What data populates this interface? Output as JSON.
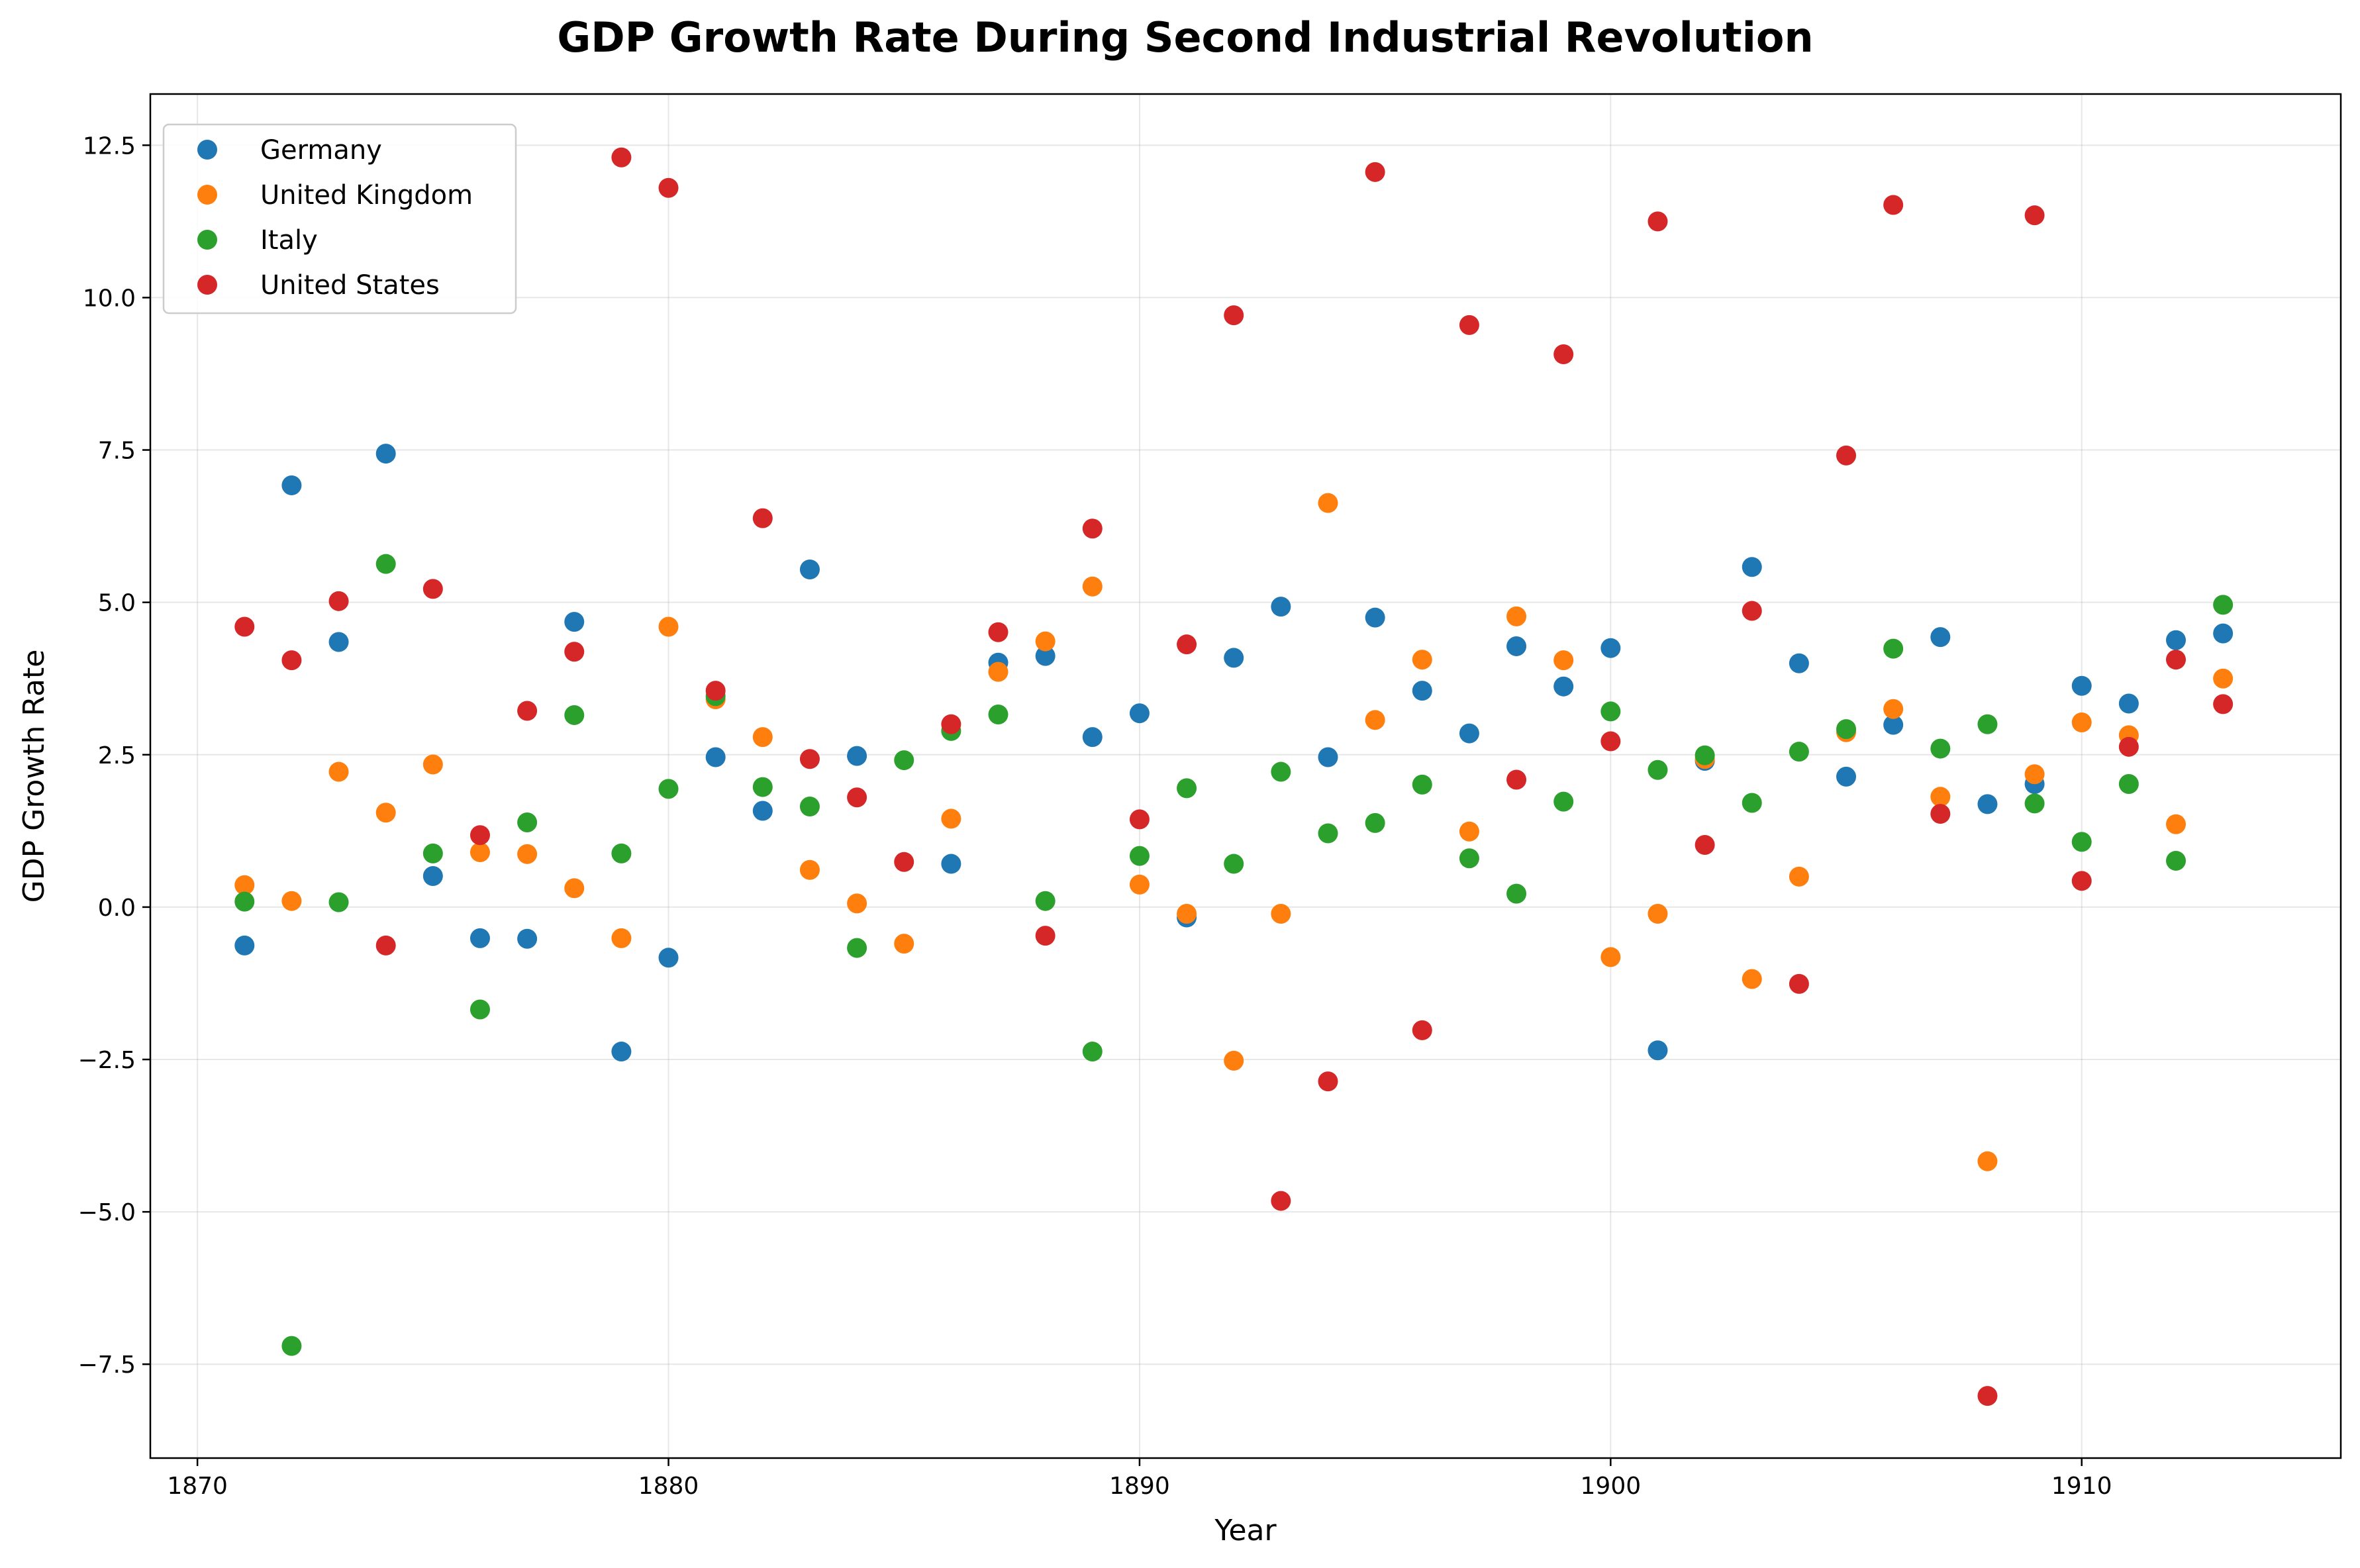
{
  "chart_data": {
    "type": "scatter",
    "title": "GDP Growth Rate During Second Industrial Revolution",
    "xlabel": "Year",
    "ylabel": "GDP Growth Rate",
    "xlim": [
      1869,
      1915.5
    ],
    "ylim": [
      -9.04,
      13.34
    ],
    "xticks": [
      1870,
      1880,
      1890,
      1900,
      1910
    ],
    "xtick_labels": [
      "1870",
      "1880",
      "1890",
      "1900",
      "1910"
    ],
    "yticks": [
      -7.5,
      -5.0,
      -2.5,
      0.0,
      2.5,
      5.0,
      7.5,
      10.0,
      12.5
    ],
    "ytick_labels": [
      "−7.5",
      "−5.0",
      "−2.5",
      "0.0",
      "2.5",
      "5.0",
      "7.5",
      "10.0",
      "12.5"
    ],
    "grid": true,
    "legend_position": "top-left",
    "x": [
      1871,
      1872,
      1873,
      1874,
      1875,
      1876,
      1877,
      1878,
      1879,
      1880,
      1881,
      1882,
      1883,
      1884,
      1885,
      1886,
      1887,
      1888,
      1889,
      1890,
      1891,
      1892,
      1893,
      1894,
      1895,
      1896,
      1897,
      1898,
      1899,
      1900,
      1901,
      1902,
      1903,
      1904,
      1905,
      1906,
      1907,
      1908,
      1909,
      1910,
      1911,
      1912,
      1913
    ],
    "series": [
      {
        "name": "Germany",
        "color": "#1f77b4",
        "values": [
          -0.63,
          6.92,
          4.35,
          7.44,
          0.51,
          -0.51,
          -0.52,
          4.68,
          -2.37,
          -0.83,
          2.46,
          1.58,
          5.54,
          2.48,
          null,
          0.71,
          4.01,
          4.12,
          2.79,
          3.18,
          -0.17,
          4.09,
          4.93,
          2.46,
          4.75,
          3.55,
          2.85,
          4.28,
          3.62,
          4.25,
          -2.35,
          2.4,
          5.58,
          4.0,
          2.14,
          2.99,
          4.43,
          1.69,
          2.02,
          3.63,
          3.34,
          4.38,
          4.49
        ]
      },
      {
        "name": "United Kingdom",
        "color": "#ff7f0e",
        "values": [
          0.36,
          0.1,
          2.22,
          1.55,
          2.34,
          0.9,
          0.87,
          0.31,
          -0.51,
          4.6,
          3.41,
          2.79,
          0.61,
          0.06,
          -0.6,
          1.45,
          3.86,
          4.36,
          5.26,
          0.37,
          -0.11,
          -2.52,
          -0.11,
          6.63,
          3.07,
          4.06,
          1.24,
          4.77,
          4.05,
          -0.82,
          -0.11,
          2.43,
          -1.18,
          0.5,
          2.87,
          3.25,
          1.81,
          -4.17,
          2.18,
          3.03,
          2.82,
          1.36,
          3.75
        ]
      },
      {
        "name": "Italy",
        "color": "#2ca02c",
        "values": [
          0.09,
          -7.2,
          0.08,
          5.63,
          0.88,
          -1.68,
          1.39,
          3.15,
          0.88,
          1.94,
          3.46,
          1.97,
          1.65,
          -0.67,
          2.41,
          2.89,
          3.16,
          0.1,
          -2.37,
          0.84,
          1.95,
          0.71,
          2.22,
          1.21,
          1.38,
          2.01,
          0.8,
          0.22,
          1.73,
          3.21,
          2.25,
          2.49,
          1.71,
          2.55,
          2.92,
          4.24,
          2.6,
          3.0,
          1.7,
          1.07,
          2.02,
          0.76,
          4.96
        ]
      },
      {
        "name": "United States",
        "color": "#d62728",
        "values": [
          4.6,
          4.05,
          5.02,
          -0.63,
          5.22,
          1.18,
          3.22,
          4.19,
          12.3,
          11.8,
          3.55,
          6.38,
          2.43,
          1.8,
          0.74,
          3.0,
          4.51,
          -0.47,
          6.21,
          1.44,
          4.31,
          9.71,
          -4.82,
          -2.86,
          12.06,
          -2.02,
          9.55,
          2.09,
          9.07,
          2.72,
          11.25,
          1.02,
          4.86,
          -1.26,
          7.41,
          11.52,
          1.53,
          -8.02,
          11.35,
          0.43,
          2.63,
          4.06,
          3.33
        ]
      }
    ]
  }
}
